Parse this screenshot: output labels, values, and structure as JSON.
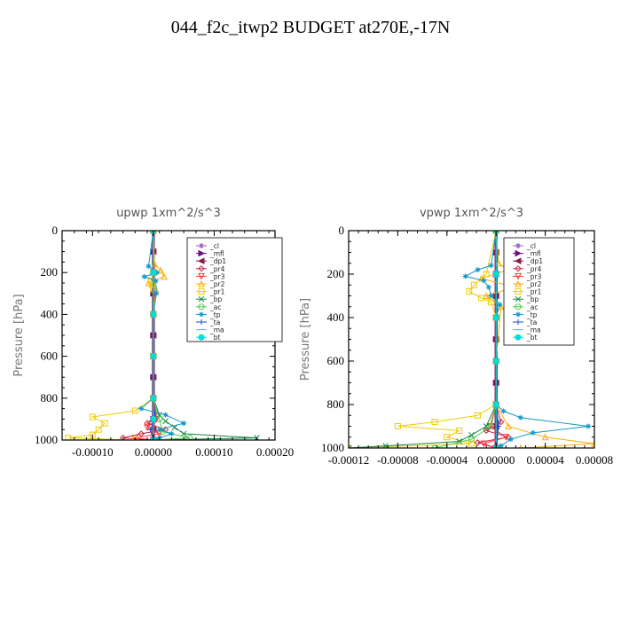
{
  "page_title": "044_f2c_itwp2  BUDGET at270E,-17N",
  "chart_data": [
    {
      "type": "line",
      "title": "upwp    1xm^2/s^3",
      "ylabel": "Pressure [hPa]",
      "xlabel": "",
      "xlim": [
        -0.00015,
        0.0002
      ],
      "ylim": [
        1000,
        0
      ],
      "x_ticks": [
        -0.0001,
        0.0,
        0.0001,
        0.0002
      ],
      "x_tick_labels": [
        "-0.00010",
        "0.00000",
        "0.00010",
        "0.00020"
      ],
      "y_ticks": [
        0,
        200,
        400,
        600,
        800,
        1000
      ],
      "y_tick_labels": [
        "0",
        "200",
        "400",
        "600",
        "800",
        "1000"
      ],
      "legend_placement": "top-right",
      "series": [
        {
          "name": "_cl",
          "color": "#9b59b6",
          "marker": "star",
          "pressure": [
            0,
            100,
            200,
            300,
            400,
            500,
            600,
            700,
            800,
            900,
            1000
          ],
          "values": [
            0,
            0,
            0,
            0,
            0,
            0,
            0,
            0,
            0,
            0,
            0
          ]
        },
        {
          "name": "_mfl",
          "color": "#6a0d83",
          "marker": "triangle-right",
          "pressure": [
            0,
            100,
            200,
            300,
            400,
            500,
            600,
            700,
            800,
            900,
            1000
          ],
          "values": [
            0,
            0,
            0,
            0,
            0,
            0,
            0,
            0,
            0,
            0,
            0
          ]
        },
        {
          "name": "_dp1",
          "color": "#8b1a4a",
          "marker": "triangle-left",
          "pressure": [
            0,
            100,
            200,
            300,
            400,
            500,
            600,
            700,
            800,
            900,
            950,
            1000
          ],
          "values": [
            0,
            0,
            0,
            0,
            0,
            0,
            0,
            0,
            0,
            0,
            0,
            0
          ]
        },
        {
          "name": "_pr4",
          "color": "#cc2244",
          "marker": "diamond",
          "pressure": [
            0,
            200,
            400,
            600,
            800,
            880,
            920,
            950,
            970,
            990,
            1000
          ],
          "values": [
            0,
            0,
            0,
            0,
            0,
            5e-06,
            -1e-05,
            2e-05,
            -2e-05,
            -5e-05,
            0
          ]
        },
        {
          "name": "_pr3",
          "color": "#ff3333",
          "marker": "triangle-down",
          "pressure": [
            0,
            200,
            400,
            600,
            800,
            900,
            940,
            970,
            990,
            1000
          ],
          "values": [
            0,
            0,
            0,
            0,
            0,
            5e-06,
            -1e-05,
            1e-05,
            -3e-05,
            0
          ]
        },
        {
          "name": "_pr2",
          "color": "#ffaa00",
          "marker": "triangle-up",
          "pressure": [
            0,
            160,
            190,
            220,
            250,
            280,
            400,
            600,
            800,
            1000
          ],
          "values": [
            0,
            2e-06,
            1.2e-05,
            1.8e-05,
            -8e-06,
            4e-06,
            0,
            0,
            0,
            0
          ]
        },
        {
          "name": "_pr1",
          "color": "#eecc00",
          "marker": "square",
          "pressure": [
            0,
            200,
            240,
            260,
            280,
            400,
            600,
            800,
            860,
            890,
            920,
            950,
            975,
            990,
            1000
          ],
          "values": [
            0,
            0,
            -4e-06,
            -2e-06,
            0,
            0,
            0,
            0,
            -3e-05,
            -0.0001,
            -8e-05,
            -9e-05,
            -0.0001,
            -0.00014,
            -3e-05
          ]
        },
        {
          "name": "_bp",
          "color": "#118844",
          "marker": "x",
          "pressure": [
            0,
            200,
            400,
            600,
            800,
            880,
            910,
            940,
            970,
            990,
            1000
          ],
          "values": [
            0,
            0,
            0,
            0,
            0,
            1e-05,
            2e-05,
            3.5e-05,
            5e-05,
            0.00017,
            0
          ]
        },
        {
          "name": "_ac",
          "color": "#44cc44",
          "marker": "circle",
          "pressure": [
            0,
            200,
            400,
            600,
            800,
            900,
            960,
            990,
            1000
          ],
          "values": [
            0,
            0,
            0,
            0,
            0,
            1e-05,
            1.5e-05,
            6e-05,
            0
          ]
        },
        {
          "name": "_tp",
          "color": "#1199cc",
          "marker": "asterisk",
          "pressure": [
            0,
            170,
            200,
            220,
            240,
            300,
            400,
            600,
            800,
            850,
            880,
            920,
            950,
            970,
            990,
            1000
          ],
          "values": [
            0,
            -8e-06,
            6e-06,
            -1.5e-05,
            4e-06,
            5e-06,
            0,
            0,
            0,
            -2e-05,
            2e-05,
            5e-05,
            1e-05,
            3e-05,
            1e-05,
            0
          ]
        },
        {
          "name": "_ta",
          "color": "#2244cc",
          "marker": "plus",
          "pressure": [
            0,
            200,
            400,
            600,
            800,
            900,
            950,
            1000
          ],
          "values": [
            0,
            0,
            0,
            0,
            0,
            3e-06,
            -5e-06,
            0
          ]
        },
        {
          "name": "_ma",
          "color": "#66aaff",
          "marker": "dash",
          "pressure": [
            0,
            200,
            400,
            600,
            800,
            900,
            1000
          ],
          "values": [
            0,
            0,
            0,
            0,
            0,
            0,
            0
          ]
        },
        {
          "name": "_bt",
          "color": "#00dddd",
          "marker": "dot",
          "pressure": [
            0,
            200,
            400,
            600,
            800,
            900,
            1000
          ],
          "values": [
            0,
            0,
            0,
            0,
            0,
            0,
            0
          ]
        }
      ]
    },
    {
      "type": "line",
      "title": "vpwp    1xm^2/s^3",
      "ylabel": "Pressure [hPa]",
      "xlabel": "",
      "xlim": [
        -0.00012,
        8e-05
      ],
      "ylim": [
        1000,
        0
      ],
      "x_ticks": [
        -0.00012,
        -8e-05,
        -4e-05,
        0.0,
        4e-05,
        8e-05
      ],
      "x_tick_labels": [
        "-0.00012",
        "-0.00008",
        "-0.00004",
        "0.00000",
        "0.00004",
        "0.00008"
      ],
      "y_ticks": [
        0,
        200,
        400,
        600,
        800,
        1000
      ],
      "y_tick_labels": [
        "0",
        "200",
        "400",
        "600",
        "800",
        "1000"
      ],
      "legend_placement": "top-right",
      "series": [
        {
          "name": "_cl",
          "color": "#9b59b6",
          "marker": "star",
          "pressure": [
            0,
            100,
            200,
            300,
            400,
            500,
            600,
            700,
            800,
            900,
            1000
          ],
          "values": [
            0,
            0,
            0,
            0,
            0,
            0,
            0,
            0,
            0,
            0,
            0
          ]
        },
        {
          "name": "_mfl",
          "color": "#6a0d83",
          "marker": "triangle-right",
          "pressure": [
            0,
            100,
            200,
            300,
            400,
            500,
            600,
            700,
            800,
            900,
            1000
          ],
          "values": [
            0,
            0,
            0,
            0,
            0,
            0,
            0,
            0,
            0,
            0,
            0
          ]
        },
        {
          "name": "_dp1",
          "color": "#8b1a4a",
          "marker": "triangle-left",
          "pressure": [
            0,
            100,
            200,
            300,
            400,
            500,
            600,
            700,
            800,
            900,
            1000
          ],
          "values": [
            0,
            0,
            0,
            0,
            0,
            0,
            0,
            0,
            0,
            0,
            0
          ]
        },
        {
          "name": "_pr4",
          "color": "#cc2244",
          "marker": "diamond",
          "pressure": [
            0,
            200,
            400,
            600,
            800,
            880,
            920,
            950,
            975,
            1000
          ],
          "values": [
            0,
            0,
            0,
            0,
            0,
            4e-06,
            -8e-06,
            1e-05,
            -1.5e-05,
            0
          ]
        },
        {
          "name": "_pr3",
          "color": "#ff3333",
          "marker": "triangle-down",
          "pressure": [
            0,
            200,
            400,
            600,
            800,
            900,
            950,
            980,
            1000
          ],
          "values": [
            0,
            0,
            0,
            0,
            0,
            -5e-06,
            8e-06,
            -1e-05,
            0
          ]
        },
        {
          "name": "_pr2",
          "color": "#ffaa00",
          "marker": "triangle-up",
          "pressure": [
            0,
            150,
            180,
            220,
            260,
            300,
            350,
            600,
            800,
            900,
            950,
            980,
            1000
          ],
          "values": [
            0,
            2e-06,
            1e-05,
            -1.2e-05,
            1.5e-05,
            -8e-06,
            4e-06,
            0,
            0,
            1e-05,
            4e-05,
            8e-05,
            2e-05
          ]
        },
        {
          "name": "_pr1",
          "color": "#eecc00",
          "marker": "square",
          "pressure": [
            0,
            200,
            250,
            280,
            310,
            330,
            400,
            600,
            800,
            850,
            880,
            900,
            920,
            950,
            980,
            1000
          ],
          "values": [
            0,
            -8e-06,
            -1.8e-05,
            -2.2e-05,
            -1.2e-05,
            -4e-06,
            0,
            0,
            0,
            -1.5e-05,
            -5e-05,
            -8e-05,
            -3e-05,
            -4e-05,
            -2e-05,
            -0.00012
          ]
        },
        {
          "name": "_bp",
          "color": "#118844",
          "marker": "x",
          "pressure": [
            0,
            200,
            400,
            600,
            800,
            900,
            940,
            970,
            990,
            1000
          ],
          "values": [
            0,
            0,
            0,
            0,
            0,
            -8e-06,
            -2e-05,
            -3e-05,
            -9e-05,
            -0.00012
          ]
        },
        {
          "name": "_ac",
          "color": "#44cc44",
          "marker": "circle",
          "pressure": [
            0,
            200,
            400,
            600,
            800,
            900,
            960,
            1000
          ],
          "values": [
            0,
            0,
            0,
            0,
            0,
            -4e-06,
            -2e-05,
            -5e-05
          ]
        },
        {
          "name": "_tp",
          "color": "#1199cc",
          "marker": "asterisk",
          "pressure": [
            0,
            160,
            180,
            210,
            230,
            260,
            300,
            340,
            400,
            600,
            800,
            830,
            860,
            900,
            930,
            960,
            990,
            1000
          ],
          "values": [
            0,
            -4e-06,
            -1.5e-05,
            -2.5e-05,
            -1e-05,
            -6e-06,
            -4e-06,
            3e-06,
            0,
            0,
            0,
            6e-06,
            2e-05,
            7.5e-05,
            3e-05,
            1.2e-05,
            4e-06,
            0
          ]
        },
        {
          "name": "_ta",
          "color": "#2244cc",
          "marker": "plus",
          "pressure": [
            0,
            200,
            400,
            600,
            800,
            900,
            1000
          ],
          "values": [
            0,
            0,
            0,
            0,
            0,
            2e-06,
            0
          ]
        },
        {
          "name": "_ma",
          "color": "#66aaff",
          "marker": "dash",
          "pressure": [
            0,
            200,
            400,
            600,
            800,
            1000
          ],
          "values": [
            0,
            0,
            0,
            0,
            0,
            0
          ]
        },
        {
          "name": "_bt",
          "color": "#00dddd",
          "marker": "dot",
          "pressure": [
            0,
            200,
            400,
            600,
            800,
            1000
          ],
          "values": [
            0,
            0,
            0,
            0,
            0,
            0
          ]
        }
      ]
    }
  ]
}
